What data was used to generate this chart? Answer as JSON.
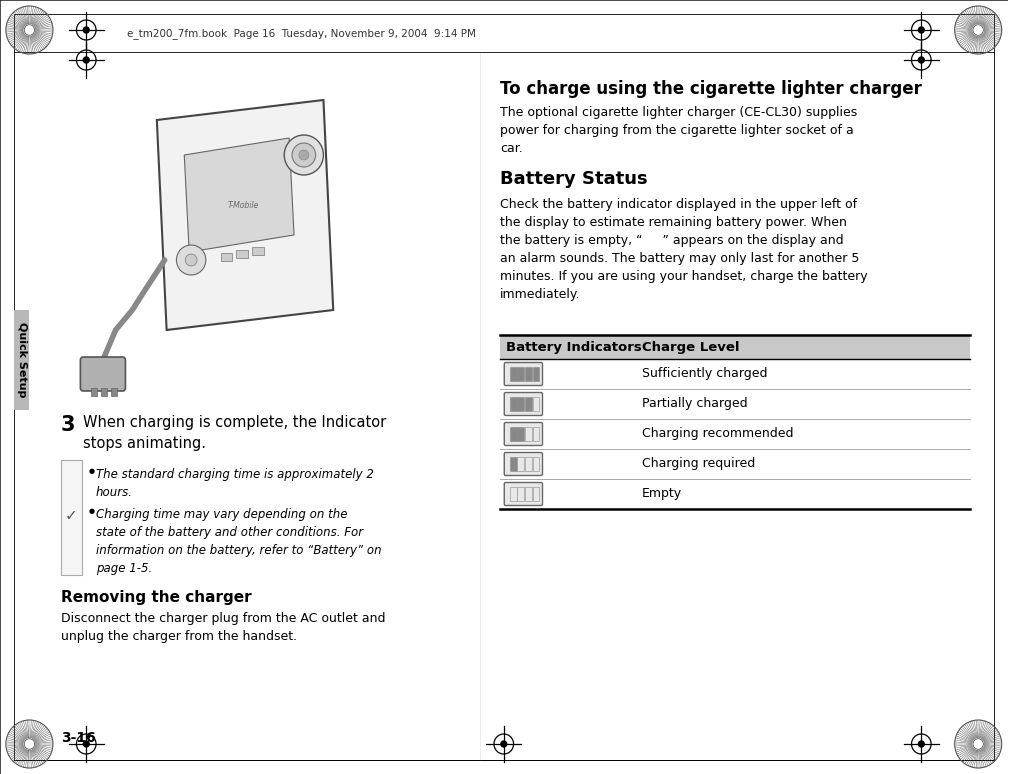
{
  "bg_color": "#ffffff",
  "header_text": "e_tm200_7fm.book  Page 16  Tuesday, November 9, 2004  9:14 PM",
  "page_num": "3-16",
  "sidebar_text": "Quick Setup",
  "step3_label": "3",
  "step3_text": "When charging is complete, the Indicator\nstops animating.",
  "note_bullet1": "The standard charging time is approximately 2\nhours.",
  "note_bullet2": "Charging time may vary depending on the\nstate of the battery and other conditions. For\ninformation on the battery, refer to “Battery” on\npage 1-5.",
  "removing_header": "Removing the charger",
  "removing_text": "Disconnect the charger plug from the AC outlet and\nunplug the charger from the handset.",
  "cigarette_header": "To charge using the cigarette lighter charger",
  "cigarette_text": "The optional cigarette lighter charger (CE-CL30) supplies\npower for charging from the cigarette lighter socket of a\ncar.",
  "battery_status_header": "Battery Status",
  "battery_status_text": "Check the battery indicator displayed in the upper left of\nthe display to estimate remaining battery power. When\nthe battery is empty, “     ” appears on the display and\nan alarm sounds. The battery may only last for another 5\nminutes. If you are using your handset, charge the battery\nimmediately.",
  "table_header_bg": "#c8c8c8",
  "table_header_col1": "Battery Indicators",
  "table_header_col2": "Charge Level",
  "table_rows": [
    "Sufficiently charged",
    "Partially charged",
    "Charging recommended",
    "Charging required",
    "Empty"
  ],
  "text_color": "#000000"
}
